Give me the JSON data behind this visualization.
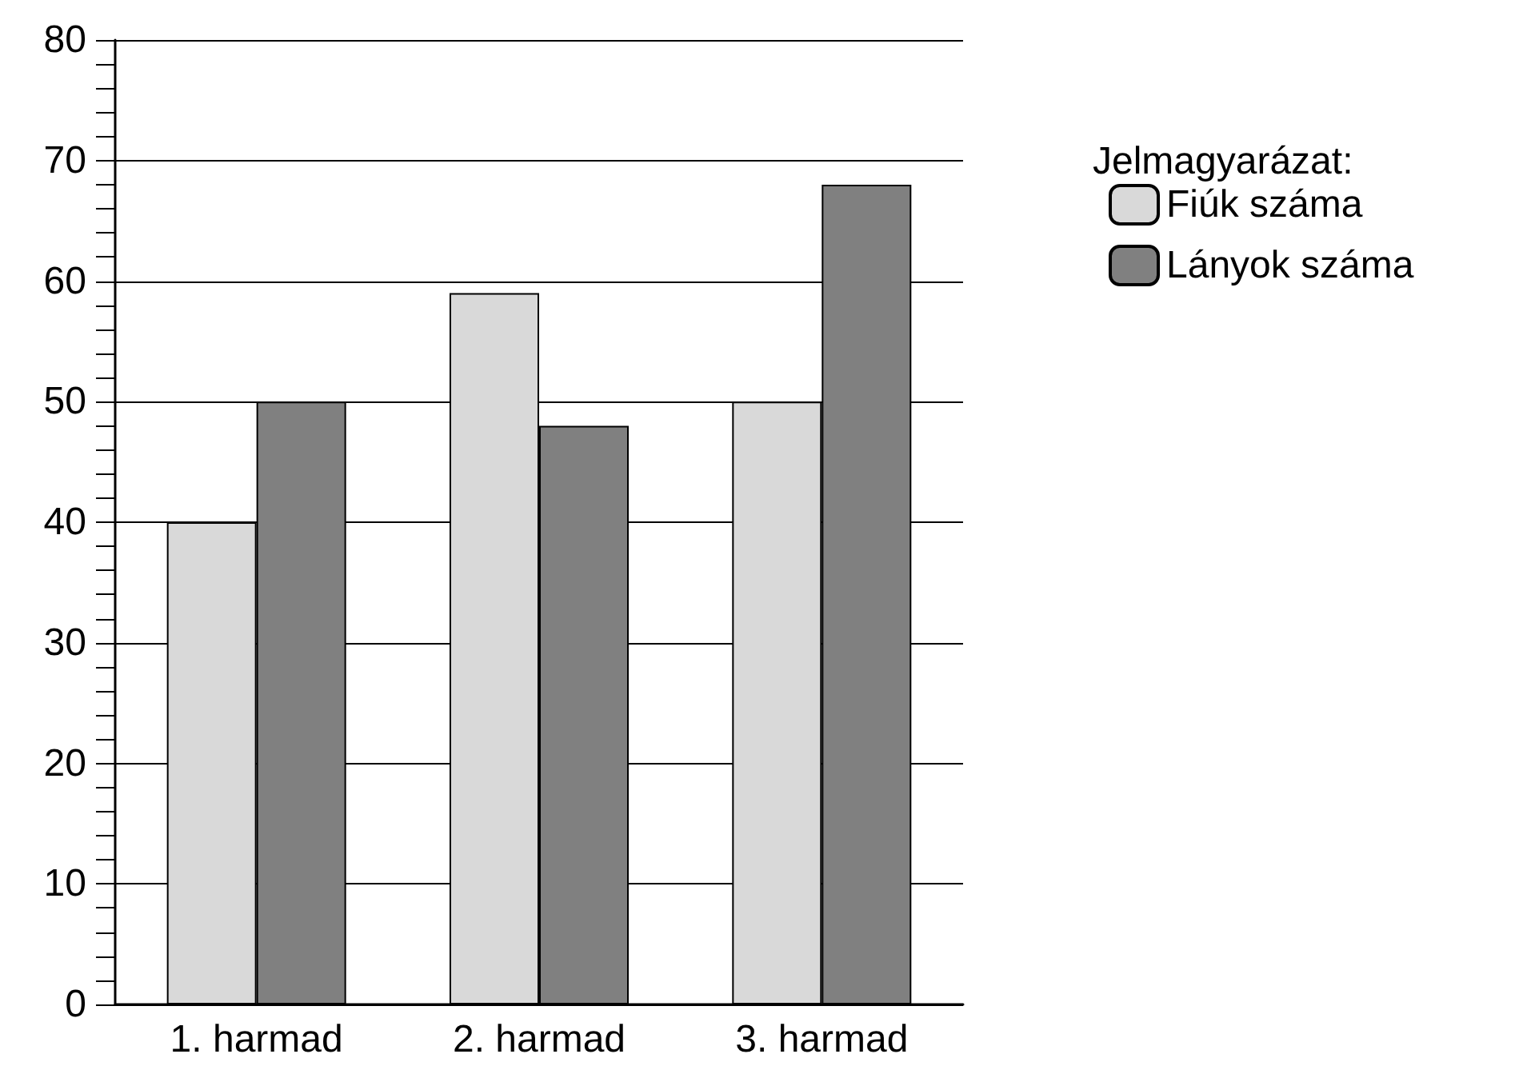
{
  "chart_data": {
    "type": "bar",
    "legend_title": "Jelmagyarázat:",
    "categories": [
      "1. harmad",
      "2. harmad",
      "3. harmad"
    ],
    "series": [
      {
        "name": "Fiúk száma",
        "color": "#d9d9d9",
        "values": [
          40,
          59,
          50
        ]
      },
      {
        "name": "Lányok száma",
        "color": "#808080",
        "values": [
          50,
          48,
          68
        ]
      }
    ],
    "ylim": [
      0,
      80
    ],
    "yticks": [
      0,
      10,
      20,
      30,
      40,
      50,
      60,
      70,
      80
    ],
    "grid": "y",
    "legend": "right"
  }
}
